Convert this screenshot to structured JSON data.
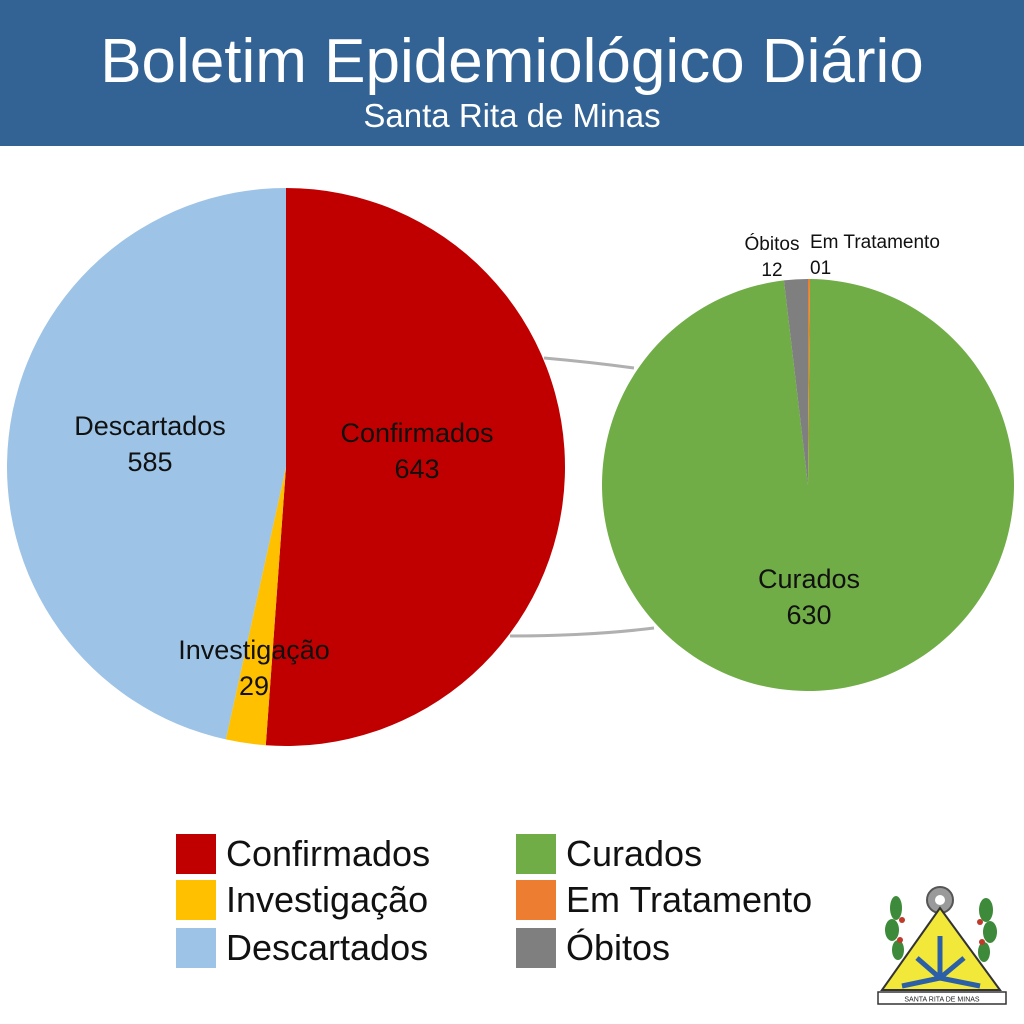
{
  "header": {
    "title": "Boletim Epidemiológico Diário",
    "subtitle": "Santa Rita de Minas"
  },
  "colors": {
    "header_bg": "#336394",
    "confirmados": "#C00000",
    "investigacao": "#FFC000",
    "descartados": "#9DC3E6",
    "curados": "#70AD47",
    "em_tratamento": "#ED7D31",
    "obitos": "#7F7F7F"
  },
  "chart_data": [
    {
      "type": "pie",
      "slices": [
        {
          "name": "Confirmados",
          "value": 643,
          "label_value": "643",
          "color": "#C00000"
        },
        {
          "name": "Investigação",
          "value": 29,
          "label_value": "29",
          "color": "#FFC000"
        },
        {
          "name": "Descartados",
          "value": 585,
          "label_value": "585",
          "color": "#9DC3E6"
        }
      ]
    },
    {
      "type": "pie",
      "slices": [
        {
          "name": "Curados",
          "value": 630,
          "label_value": "630",
          "color": "#70AD47"
        },
        {
          "name": "Óbitos",
          "value": 12,
          "label_value": "12",
          "color": "#7F7F7F"
        },
        {
          "name": "Em Tratamento",
          "value": 1,
          "label_value": "01",
          "color": "#ED7D31"
        }
      ]
    }
  ],
  "legend": {
    "placement": "bottom",
    "items": [
      {
        "label": "Confirmados",
        "color": "#C00000"
      },
      {
        "label": "Investigação",
        "color": "#FFC000"
      },
      {
        "label": "Descartados",
        "color": "#9DC3E6"
      },
      {
        "label": "Curados",
        "color": "#70AD47"
      },
      {
        "label": "Em Tratamento",
        "color": "#ED7D31"
      },
      {
        "label": "Óbitos",
        "color": "#7F7F7F"
      }
    ]
  },
  "logo": {
    "icon": "santa-rita-de-minas-coat-of-arms",
    "text": "SANTA RITA DE MINAS"
  }
}
